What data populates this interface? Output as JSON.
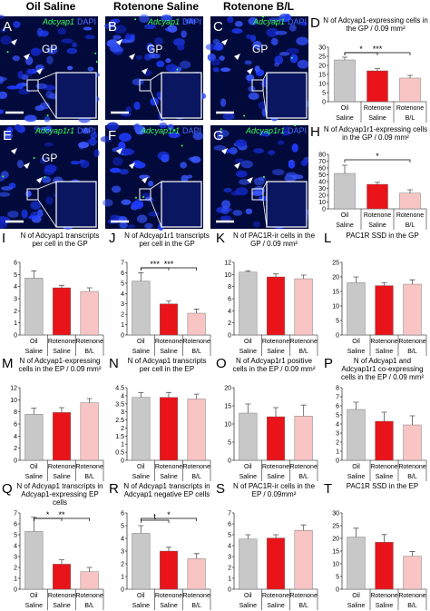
{
  "columns": [
    "Oil Saline",
    "Rotenone Saline",
    "Rotenone B/L"
  ],
  "panels": [
    {
      "label": "A",
      "marker": "Adcyap1",
      "stain": "DAPI",
      "region": "GP"
    },
    {
      "label": "B",
      "marker": "Adcyap1",
      "stain": "DAPI",
      "region": "GP"
    },
    {
      "label": "C",
      "marker": "Adcyap1",
      "stain": "DAPI",
      "region": "GP"
    },
    {
      "label": "E",
      "marker": "Adcyap1r1",
      "stain": "DAPI",
      "region": "GP"
    },
    {
      "label": "F",
      "marker": "Adcyap1r1",
      "stain": "DAPI"
    },
    {
      "label": "G",
      "marker": "Adcyap1r1",
      "stain": "DAPI"
    }
  ],
  "chart_data": [
    {
      "type": "bar",
      "label": "D",
      "title": "N of Adcyap1-expressing cells in the GP / 0.09 mm²",
      "categories": [
        "Oil",
        "Rotenone",
        "Rotenone"
      ],
      "subcategories": [
        "Saline",
        "Saline",
        "B/L"
      ],
      "values": [
        23,
        17,
        13
      ],
      "errors": [
        1.5,
        1.2,
        1.5
      ],
      "colors": [
        "#c8c8c8",
        "#e8141a",
        "#f8c4c4"
      ],
      "ylim": [
        0,
        30
      ],
      "yticks": [
        0,
        5,
        10,
        15,
        20,
        25,
        30
      ],
      "brackets": [
        {
          "from": 0,
          "to": 1,
          "label": "*"
        },
        {
          "from": 0,
          "to": 2,
          "label": "***"
        }
      ]
    },
    {
      "type": "bar",
      "label": "H",
      "title": "N of Adcyap1r1-expressing cells in the GP / 0.09 mm²",
      "categories": [
        "Oil",
        "Rotenone",
        "Rotenone"
      ],
      "subcategories": [
        "Saline",
        "Saline",
        "B/L"
      ],
      "values": [
        52,
        36,
        23
      ],
      "errors": [
        12,
        3,
        5
      ],
      "colors": [
        "#c8c8c8",
        "#e8141a",
        "#f8c4c4"
      ],
      "ylim": [
        0,
        80
      ],
      "yticks": [
        0,
        10,
        20,
        30,
        40,
        50,
        60,
        70,
        80
      ],
      "brackets": [
        {
          "from": 0,
          "to": 2,
          "label": "*"
        }
      ]
    },
    {
      "type": "bar",
      "label": "I",
      "title": "N of Adcyap1 transcripts per cell in the GP",
      "categories": [
        "Oil",
        "Rotenone",
        "Rotenone"
      ],
      "subcategories": [
        "Saline",
        "Saline",
        "B/L"
      ],
      "values": [
        4.7,
        3.9,
        3.6
      ],
      "errors": [
        0.6,
        0.2,
        0.3
      ],
      "colors": [
        "#c8c8c8",
        "#e8141a",
        "#f8c4c4"
      ],
      "ylim": [
        0,
        6
      ],
      "yticks": [
        0,
        1,
        2,
        3,
        4,
        5,
        6
      ],
      "brackets": []
    },
    {
      "type": "bar",
      "label": "J",
      "title": "N of Adcyap1r1 transcripts per cell in the GP",
      "categories": [
        "Oil",
        "Rotenone",
        "Rotenone"
      ],
      "subcategories": [
        "Saline",
        "Saline",
        "B/L"
      ],
      "values": [
        5.2,
        3.0,
        2.1
      ],
      "errors": [
        0.8,
        0.3,
        0.4
      ],
      "colors": [
        "#c8c8c8",
        "#e8141a",
        "#f8c4c4"
      ],
      "ylim": [
        0,
        7
      ],
      "yticks": [
        0,
        1,
        2,
        3,
        4,
        5,
        6,
        7
      ],
      "brackets": [
        {
          "from": 0,
          "to": 1,
          "label": "***"
        },
        {
          "from": 0,
          "to": 2,
          "label": "***"
        }
      ]
    },
    {
      "type": "bar",
      "label": "K",
      "title": "N of PAC1R-ir cells in the GP / 0.09 mm²",
      "categories": [
        "Oil",
        "Rotenone",
        "Rotenone"
      ],
      "subcategories": [
        "Saline",
        "Saline",
        "B/L"
      ],
      "values": [
        10.4,
        9.6,
        9.3
      ],
      "errors": [
        0.2,
        0.5,
        0.6
      ],
      "colors": [
        "#c8c8c8",
        "#e8141a",
        "#f8c4c4"
      ],
      "ylim": [
        0,
        12
      ],
      "yticks": [
        0,
        2,
        4,
        6,
        8,
        10,
        12
      ],
      "brackets": []
    },
    {
      "type": "bar",
      "label": "L",
      "title": "PAC1R SSD in the GP",
      "categories": [
        "Oil",
        "Rotenone",
        "Rotenone"
      ],
      "subcategories": [
        "Saline",
        "Saline",
        "B/L"
      ],
      "values": [
        18,
        17,
        17.5
      ],
      "errors": [
        2,
        1,
        1.5
      ],
      "colors": [
        "#c8c8c8",
        "#e8141a",
        "#f8c4c4"
      ],
      "ylim": [
        0,
        25
      ],
      "yticks": [
        0,
        5,
        10,
        15,
        20,
        25
      ],
      "brackets": []
    },
    {
      "type": "bar",
      "label": "M",
      "title": "N of Adcyap1-expressing cells in the EP / 0.09 mm²",
      "categories": [
        "Oil",
        "Rotenone",
        "Rotenone"
      ],
      "subcategories": [
        "Saline",
        "Saline",
        "B/L"
      ],
      "values": [
        7.6,
        7.9,
        9.5
      ],
      "errors": [
        1,
        0.8,
        0.7
      ],
      "colors": [
        "#c8c8c8",
        "#e8141a",
        "#f8c4c4"
      ],
      "ylim": [
        0,
        12
      ],
      "yticks": [
        0,
        2,
        4,
        6,
        8,
        10,
        12
      ],
      "brackets": []
    },
    {
      "type": "bar",
      "label": "N",
      "title": "N of Adcyap1 transcripts per cell in the EP",
      "categories": [
        "Oil",
        "Rotenone",
        "Rotenone"
      ],
      "subcategories": [
        "Saline",
        "Saline",
        "B/L"
      ],
      "values": [
        3.9,
        3.9,
        3.8
      ],
      "errors": [
        0.3,
        0.3,
        0.3
      ],
      "colors": [
        "#c8c8c8",
        "#e8141a",
        "#f8c4c4"
      ],
      "ylim": [
        0,
        4.5
      ],
      "yticks": [
        0,
        0.5,
        1,
        1.5,
        2,
        2.5,
        3,
        3.5,
        4,
        4.5
      ],
      "brackets": []
    },
    {
      "type": "bar",
      "label": "O",
      "title": "N of Adcyap1r1 positive cells in the EP / 0.09 mm²",
      "categories": [
        "Oil",
        "Rotenone",
        "Rotenone"
      ],
      "subcategories": [
        "Saline",
        "Saline",
        "B/L"
      ],
      "values": [
        13,
        12,
        12.2
      ],
      "errors": [
        2.5,
        2.5,
        3
      ],
      "colors": [
        "#c8c8c8",
        "#e8141a",
        "#f8c4c4"
      ],
      "ylim": [
        0,
        20
      ],
      "yticks": [
        0,
        5,
        10,
        15,
        20
      ],
      "brackets": []
    },
    {
      "type": "bar",
      "label": "P",
      "title": "N of Adcyap1 and Adcyap1r1 co-expressing cells in the EP / 0.09 mm²",
      "categories": [
        "Oil",
        "Rotenone",
        "Rotenone"
      ],
      "subcategories": [
        "Saline",
        "Saline",
        "B/L"
      ],
      "values": [
        5.6,
        4.3,
        3.9
      ],
      "errors": [
        0.8,
        1,
        1
      ],
      "colors": [
        "#c8c8c8",
        "#e8141a",
        "#f8c4c4"
      ],
      "ylim": [
        0,
        8
      ],
      "yticks": [
        0,
        1,
        2,
        3,
        4,
        5,
        6,
        7,
        8
      ],
      "brackets": []
    },
    {
      "type": "bar",
      "label": "Q",
      "title": "N of Adcyap1 transcripts in Adcyap1-expressing EP cells",
      "categories": [
        "Oil",
        "Rotenone",
        "Rotenone"
      ],
      "subcategories": [
        "Saline",
        "Saline",
        "B/L"
      ],
      "values": [
        5.3,
        2.3,
        1.6
      ],
      "errors": [
        1.3,
        0.4,
        0.4
      ],
      "colors": [
        "#c8c8c8",
        "#e8141a",
        "#f8c4c4"
      ],
      "ylim": [
        0,
        7
      ],
      "yticks": [
        0,
        1,
        2,
        3,
        4,
        5,
        6,
        7
      ],
      "brackets": [
        {
          "from": 0,
          "to": 1,
          "label": "*"
        },
        {
          "from": 0,
          "to": 2,
          "label": "**"
        }
      ]
    },
    {
      "type": "bar",
      "label": "R",
      "title": "N of Adcyap1 transcripts in Adcyap1 negative EP cells",
      "categories": [
        "Oil",
        "Rotenone",
        "Rotenone"
      ],
      "subcategories": [
        "Saline",
        "Saline",
        "B/L"
      ],
      "values": [
        4.4,
        3.0,
        2.4
      ],
      "errors": [
        0.6,
        0.3,
        0.4
      ],
      "colors": [
        "#c8c8c8",
        "#e8141a",
        "#f8c4c4"
      ],
      "ylim": [
        0,
        6
      ],
      "yticks": [
        0,
        1,
        2,
        3,
        4,
        5,
        6
      ],
      "brackets": [
        {
          "from": 0,
          "to": 1,
          "label": "t"
        },
        {
          "from": 0,
          "to": 2,
          "label": "*"
        }
      ]
    },
    {
      "type": "bar",
      "label": "S",
      "title": "N of PAC1R-ir cells in the EP / 0.09mm²",
      "categories": [
        "Oil",
        "Rotenone",
        "Rotenone"
      ],
      "subcategories": [
        "Saline",
        "Saline",
        "B/L"
      ],
      "values": [
        4.6,
        4.7,
        5.4
      ],
      "errors": [
        0.4,
        0.3,
        0.5
      ],
      "colors": [
        "#c8c8c8",
        "#e8141a",
        "#f8c4c4"
      ],
      "ylim": [
        0,
        7
      ],
      "yticks": [
        0,
        1,
        2,
        3,
        4,
        5,
        6,
        7
      ],
      "brackets": []
    },
    {
      "type": "bar",
      "label": "T",
      "title": "PAC1R SSD in the EP",
      "categories": [
        "Oil",
        "Rotenone",
        "Rotenone"
      ],
      "subcategories": [
        "Saline",
        "Saline",
        "B/L"
      ],
      "values": [
        20.5,
        18.5,
        13
      ],
      "errors": [
        3.5,
        3,
        1.8
      ],
      "colors": [
        "#c8c8c8",
        "#e8141a",
        "#f8c4c4"
      ],
      "ylim": [
        0,
        30
      ],
      "yticks": [
        0,
        5,
        10,
        15,
        20,
        25,
        30
      ],
      "brackets": []
    }
  ]
}
